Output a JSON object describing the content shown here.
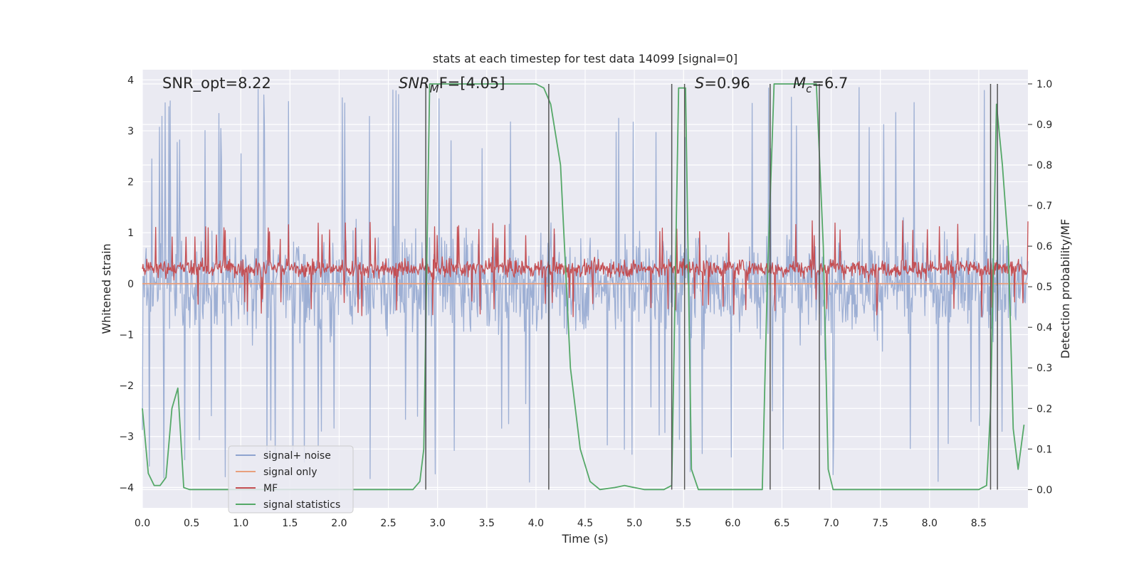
{
  "chart_data": {
    "type": "line",
    "title": "stats at each timestep for test data 14099 [signal=0]",
    "xlabel": "Time (s)",
    "ylabel": "Whitened strain",
    "y2label": "Detection probability/MF",
    "xlim": [
      0,
      9
    ],
    "ylim": [
      -4.4,
      4.2
    ],
    "y2lim": [
      -0.045,
      1.035
    ],
    "xticks": [
      "0.0",
      "0.5",
      "1.0",
      "1.5",
      "2.0",
      "2.5",
      "3.0",
      "3.5",
      "4.0",
      "4.5",
      "5.0",
      "5.5",
      "6.0",
      "6.5",
      "7.0",
      "7.5",
      "8.0",
      "8.5"
    ],
    "yticks": [
      "4",
      "3",
      "2",
      "1",
      "0",
      "−1",
      "−2",
      "−3",
      "−4"
    ],
    "y2ticks": [
      "1.0",
      "0.9",
      "0.8",
      "0.7",
      "0.6",
      "0.5",
      "0.4",
      "0.3",
      "0.2",
      "0.1",
      "0.0"
    ],
    "grid": true,
    "legend_position": "lower-left",
    "annotations": {
      "snr_opt": "SNR_opt=8.22",
      "snr_mf_sym": "SNR",
      "snr_mf_sub": "M",
      "snr_mf_rest": "F=[4.05]",
      "s_sym": "S",
      "s_rest": "=0.96",
      "mc_sym": "M",
      "mc_sub": "c",
      "mc_rest": "=6.7"
    },
    "series": [
      {
        "name": "signal+ noise",
        "color": "#8fa4cf",
        "style": "noise",
        "mean": 0,
        "spread": 1.2,
        "peak": 3.9,
        "samples": 1400
      },
      {
        "name": "signal only",
        "color": "#e8a07e",
        "style": "flat",
        "values": [
          [
            0,
            0
          ],
          [
            9,
            0
          ]
        ]
      },
      {
        "name": "MF",
        "color": "#c44e52",
        "style": "noise",
        "mean": 0.3,
        "spread": 0.22,
        "peak": 0.95,
        "samples": 1400
      },
      {
        "name": "signal statistics",
        "color": "#55a868",
        "axis": "right",
        "points": [
          [
            0,
            0.2
          ],
          [
            0.06,
            0.04
          ],
          [
            0.12,
            0.01
          ],
          [
            0.18,
            0.01
          ],
          [
            0.24,
            0.03
          ],
          [
            0.3,
            0.2
          ],
          [
            0.36,
            0.25
          ],
          [
            0.42,
            0.005
          ],
          [
            0.48,
            0
          ],
          [
            1.0,
            0
          ],
          [
            2.0,
            0
          ],
          [
            2.75,
            0
          ],
          [
            2.82,
            0.02
          ],
          [
            2.86,
            0.1
          ],
          [
            2.92,
            1.0
          ],
          [
            3.0,
            1.0
          ],
          [
            3.5,
            1.0
          ],
          [
            4.0,
            1.0
          ],
          [
            4.08,
            0.99
          ],
          [
            4.15,
            0.95
          ],
          [
            4.25,
            0.8
          ],
          [
            4.35,
            0.3
          ],
          [
            4.45,
            0.1
          ],
          [
            4.55,
            0.02
          ],
          [
            4.65,
            0.0
          ],
          [
            4.8,
            0.005
          ],
          [
            4.9,
            0.01
          ],
          [
            5.0,
            0.005
          ],
          [
            5.1,
            0
          ],
          [
            5.3,
            0
          ],
          [
            5.38,
            0.01
          ],
          [
            5.45,
            0.99
          ],
          [
            5.52,
            0.99
          ],
          [
            5.58,
            0.05
          ],
          [
            5.65,
            0.0
          ],
          [
            6.0,
            0
          ],
          [
            6.3,
            0
          ],
          [
            6.35,
            0.5
          ],
          [
            6.42,
            1.0
          ],
          [
            6.6,
            1.0
          ],
          [
            6.85,
            1.0
          ],
          [
            6.92,
            0.6
          ],
          [
            6.97,
            0.05
          ],
          [
            7.02,
            0.0
          ],
          [
            7.5,
            0
          ],
          [
            8.0,
            0
          ],
          [
            8.5,
            0
          ],
          [
            8.58,
            0.01
          ],
          [
            8.62,
            0.2
          ],
          [
            8.68,
            0.95
          ],
          [
            8.74,
            0.8
          ],
          [
            8.8,
            0.6
          ],
          [
            8.85,
            0.15
          ],
          [
            8.9,
            0.05
          ],
          [
            8.96,
            0.16
          ]
        ]
      }
    ],
    "vlines": [
      2.88,
      4.13,
      5.38,
      5.51,
      6.38,
      6.88,
      8.62,
      8.69
    ]
  }
}
